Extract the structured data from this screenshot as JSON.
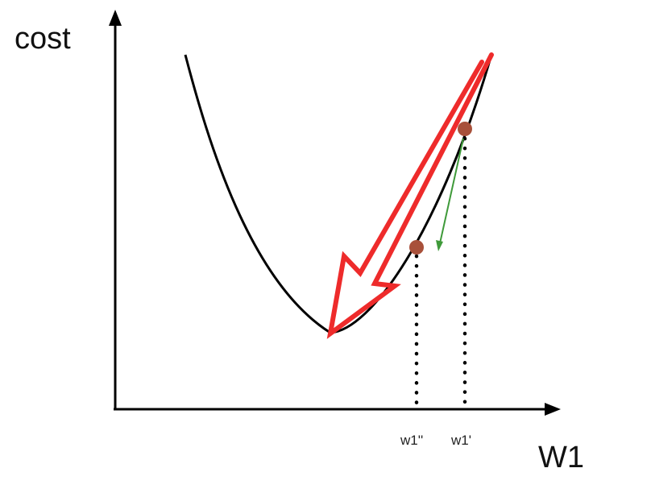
{
  "axes": {
    "y_label": "cost",
    "x_label": "W1"
  },
  "ticks": {
    "w1_double_prime": "w1''",
    "w1_prime": "w1'"
  },
  "colors": {
    "axis": "#000000",
    "curve": "#000000",
    "big_arrow": "#ee2b2b",
    "small_arrow": "#3f9a3a",
    "point": "#a8503a",
    "dotted_line": "#000000"
  }
}
